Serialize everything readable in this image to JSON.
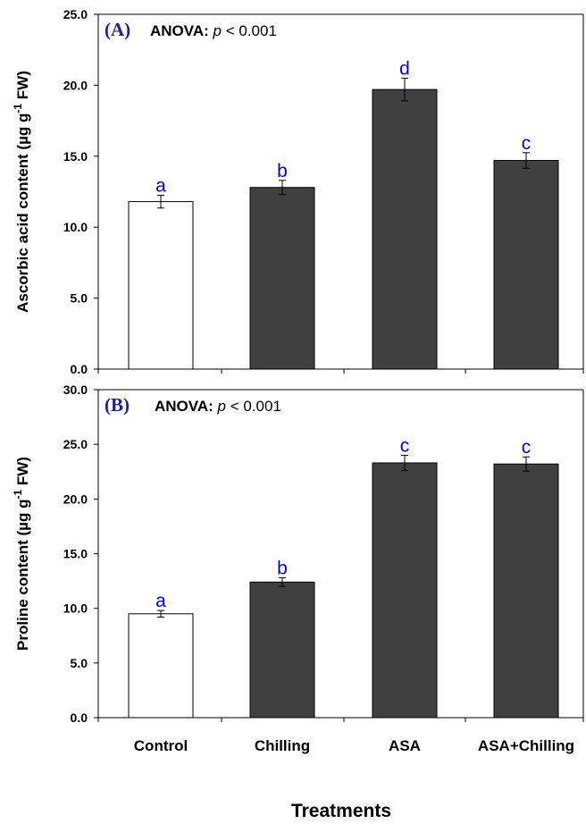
{
  "chart_data": [
    {
      "type": "bar",
      "panel_label": "(A)",
      "annotation": {
        "prefix": "ANOVA:",
        "stat": "p",
        "rest": " < 0.001"
      },
      "ylabel": "Ascorbic acid content (µg g",
      "ylabel_sup": "-1",
      "ylabel_tail": " FW)",
      "ylim": [
        0,
        25
      ],
      "yticks": [
        "0.0",
        "5.0",
        "10.0",
        "15.0",
        "20.0",
        "25.0"
      ],
      "categories": [
        "Control",
        "Chilling",
        "ASA",
        "ASA+Chilling"
      ],
      "values": [
        11.8,
        12.8,
        19.7,
        14.7
      ],
      "errors": [
        0.45,
        0.5,
        0.8,
        0.55
      ],
      "sig_letters": [
        "a",
        "b",
        "d",
        "c"
      ],
      "bar_colors": [
        "#ffffff",
        "#404040",
        "#404040",
        "#404040"
      ]
    },
    {
      "type": "bar",
      "panel_label": "(B)",
      "annotation": {
        "prefix": "ANOVA:",
        "stat": "p",
        "rest": " < 0.001"
      },
      "ylabel": "Proline content (µg g",
      "ylabel_sup": "-1",
      "ylabel_tail": " FW)",
      "ylim": [
        0,
        30
      ],
      "yticks": [
        "0.0",
        "5.0",
        "10.0",
        "15.0",
        "20.0",
        "25.0",
        "30.0"
      ],
      "categories": [
        "Control",
        "Chilling",
        "ASA",
        "ASA+Chilling"
      ],
      "values": [
        9.5,
        12.4,
        23.3,
        23.2
      ],
      "errors": [
        0.3,
        0.4,
        0.7,
        0.65
      ],
      "sig_letters": [
        "a",
        "b",
        "c",
        "c"
      ],
      "bar_colors": [
        "#ffffff",
        "#404040",
        "#404040",
        "#404040"
      ]
    }
  ],
  "xlabel": "Treatments",
  "colors": {
    "letter_color": "#0000ee",
    "panel_label_color": "#1f1f9e",
    "bar_dark": "#404040",
    "bar_light": "#ffffff"
  }
}
